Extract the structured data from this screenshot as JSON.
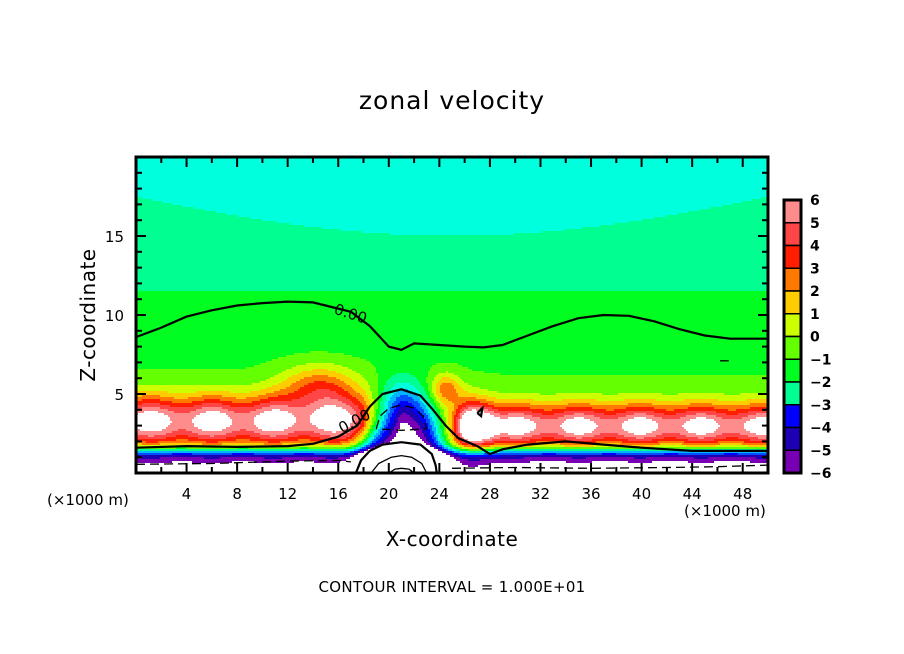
{
  "chart_data": {
    "type": "heatmap",
    "subtype": "filled-contour",
    "title": "zonal velocity",
    "xlabel": "X-coordinate",
    "ylabel": "Z-coordinate",
    "x_unit_label": "(×1000 m)",
    "z_unit_label": "(×1000 m)",
    "footer": "CONTOUR INTERVAL = 1.000E+01",
    "xlim": [
      0,
      50
    ],
    "ylim": [
      0,
      20
    ],
    "x_ticks": [
      4,
      8,
      12,
      16,
      20,
      24,
      28,
      32,
      36,
      40,
      44,
      48
    ],
    "x_minor_step": 2,
    "y_ticks": [
      5,
      10,
      15
    ],
    "y_minor_step": 1,
    "grid": false,
    "colorbar": {
      "position": "right",
      "ticks": [
        6,
        5,
        4,
        3,
        2,
        1,
        0,
        -1,
        -2,
        -3,
        -4,
        -5,
        -6
      ],
      "levels": [
        {
          "from": 5,
          "to": 6,
          "color": "#ff8c8c"
        },
        {
          "from": 4,
          "to": 5,
          "color": "#ff4646"
        },
        {
          "from": 3,
          "to": 4,
          "color": "#ff1e00"
        },
        {
          "from": 2,
          "to": 3,
          "color": "#ff7800"
        },
        {
          "from": 1,
          "to": 2,
          "color": "#ffcc00"
        },
        {
          "from": 0,
          "to": 1,
          "color": "#ccff00"
        },
        {
          "from": -1,
          "to": 0,
          "color": "#64ff00"
        },
        {
          "from": -2,
          "to": -1,
          "color": "#00ff20"
        },
        {
          "from": -3,
          "to": -2,
          "color": "#00ff90"
        },
        {
          "from": -4,
          "to": -3,
          "color": "#00ffdc"
        },
        {
          "from": -5,
          "to": -4,
          "color": "#00b4ff"
        },
        {
          "from": -6,
          "to": -5,
          "color": "#0050ff"
        }
      ],
      "extra_levels": [
        {
          "from": -7,
          "to": -6,
          "color": "#0000ff"
        },
        {
          "from": -8,
          "to": -7,
          "color": "#1e00b4"
        },
        {
          "from": -9,
          "to": -8,
          "color": "#7800b4"
        }
      ],
      "over_color": "#ffffff",
      "under_color": "#ffffff"
    },
    "field_description": "Zonal velocity over x in [0,50] km, z in [0,20] km. Cyan/green (negative to near zero) aloft, strong positive jet (red/white) near z=2-6 km, strong negative (blue/white) layer near surface and over the ridge at x~21 km.",
    "field_features": [
      {
        "kind": "background",
        "value_top": -3.4,
        "value_bottom": 0.5,
        "z_transition": 9
      },
      {
        "kind": "jet",
        "x0": 0,
        "x1": 18,
        "z_center": 3.3,
        "z_width": 1.6,
        "amp": 6.8
      },
      {
        "kind": "jet",
        "x0": 28,
        "x1": 50,
        "z_center": 3.0,
        "z_width": 1.4,
        "amp": 6.6
      },
      {
        "kind": "blob",
        "x": 14.5,
        "z": 5.5,
        "rx": 3.0,
        "rz": 1.4,
        "amp": 3.5
      },
      {
        "kind": "blob",
        "x": 26.5,
        "z": 3.0,
        "rx": 1.6,
        "rz": 1.6,
        "amp": 6.5
      },
      {
        "kind": "blob",
        "x": 24.5,
        "z": 5.3,
        "rx": 1.2,
        "rz": 1.0,
        "amp": 3.5
      },
      {
        "kind": "dome",
        "x": 21.0,
        "z": 0,
        "rx": 3.2,
        "rz": 5.0,
        "amp": -10
      },
      {
        "kind": "surface_layer",
        "z_top": 1.4,
        "amp": -10
      }
    ],
    "contours": [
      {
        "level": 0.0,
        "style": "solid",
        "label": "0.00",
        "label_at": [
          15.6,
          10.1
        ],
        "points": [
          [
            0,
            8.6
          ],
          [
            2,
            9.2
          ],
          [
            4,
            9.9
          ],
          [
            6,
            10.3
          ],
          [
            8,
            10.6
          ],
          [
            10,
            10.75
          ],
          [
            12,
            10.85
          ],
          [
            14,
            10.8
          ],
          [
            15,
            10.6
          ],
          [
            17,
            10.2
          ],
          [
            18.5,
            9.3
          ],
          [
            20,
            8.0
          ],
          [
            21,
            7.8
          ],
          [
            22,
            8.2
          ],
          [
            24,
            8.1
          ],
          [
            26,
            8.0
          ],
          [
            27.5,
            7.95
          ],
          [
            29,
            8.1
          ],
          [
            31,
            8.7
          ],
          [
            33,
            9.3
          ],
          [
            35,
            9.8
          ],
          [
            37,
            10.0
          ],
          [
            39,
            9.95
          ],
          [
            41,
            9.6
          ],
          [
            43,
            9.1
          ],
          [
            45,
            8.7
          ],
          [
            47,
            8.5
          ],
          [
            50,
            8.5
          ]
        ]
      },
      {
        "level": 0.0,
        "style": "solid",
        "label": "0.00",
        "label_at": [
          16.3,
          2.5
        ],
        "points": [
          [
            0,
            1.6
          ],
          [
            4,
            1.7
          ],
          [
            8,
            1.65
          ],
          [
            12,
            1.7
          ],
          [
            14,
            1.85
          ],
          [
            16,
            2.3
          ],
          [
            17.5,
            3.0
          ],
          [
            18.5,
            4.2
          ],
          [
            19.5,
            5.0
          ],
          [
            21,
            5.3
          ],
          [
            22.5,
            4.9
          ],
          [
            23.5,
            4.0
          ],
          [
            24.5,
            3.0
          ],
          [
            25.5,
            2.2
          ],
          [
            27,
            1.7
          ],
          [
            28,
            1.2
          ],
          [
            29,
            1.5
          ],
          [
            31,
            1.8
          ],
          [
            34,
            2.0
          ],
          [
            37,
            1.8
          ],
          [
            40,
            1.6
          ],
          [
            44,
            1.4
          ],
          [
            48,
            1.4
          ],
          [
            50,
            1.4
          ]
        ]
      },
      {
        "level": -10.0,
        "style": "dashed",
        "points": [
          [
            19,
            2.8
          ],
          [
            19.3,
            3.6
          ],
          [
            20,
            4.1
          ],
          [
            21,
            4.3
          ],
          [
            22,
            4.1
          ],
          [
            22.7,
            3.6
          ],
          [
            23,
            2.8
          ],
          [
            21,
            2.7
          ],
          [
            19,
            2.8
          ]
        ]
      },
      {
        "level": -10.0,
        "style": "dashed",
        "points": [
          [
            0,
            0.55
          ],
          [
            6,
            0.6
          ],
          [
            12,
            0.75
          ],
          [
            16,
            0.8
          ],
          [
            17,
            0.7
          ]
        ]
      },
      {
        "level": -10.0,
        "style": "dashed",
        "points": [
          [
            25,
            0.3
          ],
          [
            30,
            0.35
          ],
          [
            36,
            0.3
          ],
          [
            42,
            0.35
          ],
          [
            46,
            0.4
          ],
          [
            50,
            0.5
          ]
        ]
      },
      {
        "level": 0.0,
        "style": "solid",
        "points": [
          [
            17.4,
            0
          ],
          [
            17.8,
            0.8
          ],
          [
            18.5,
            1.4
          ],
          [
            19.5,
            1.8
          ],
          [
            21,
            1.95
          ],
          [
            22.5,
            1.8
          ],
          [
            23.4,
            1.2
          ],
          [
            23.7,
            0.5
          ],
          [
            23.8,
            0
          ]
        ]
      },
      {
        "level": -20.0,
        "style": "solid",
        "points": [
          [
            18.6,
            0
          ],
          [
            19.2,
            0.6
          ],
          [
            20.2,
            1.0
          ],
          [
            21,
            1.1
          ],
          [
            21.8,
            1.0
          ],
          [
            22.6,
            0.6
          ],
          [
            23,
            0
          ]
        ]
      },
      {
        "level": -30.0,
        "style": "solid",
        "points": [
          [
            20,
            0
          ],
          [
            20.5,
            0.25
          ],
          [
            21,
            0.3
          ],
          [
            21.6,
            0.25
          ],
          [
            22,
            0
          ]
        ]
      },
      {
        "level": 0.0,
        "style": "solid",
        "points": [
          [
            27.0,
            3.8
          ],
          [
            27.4,
            4.1
          ],
          [
            27.3,
            3.6
          ],
          [
            27.0,
            3.8
          ]
        ]
      },
      {
        "level": -1.0,
        "style": "solid",
        "points": [
          [
            46.2,
            7.1
          ],
          [
            46.9,
            7.1
          ]
        ]
      }
    ]
  }
}
